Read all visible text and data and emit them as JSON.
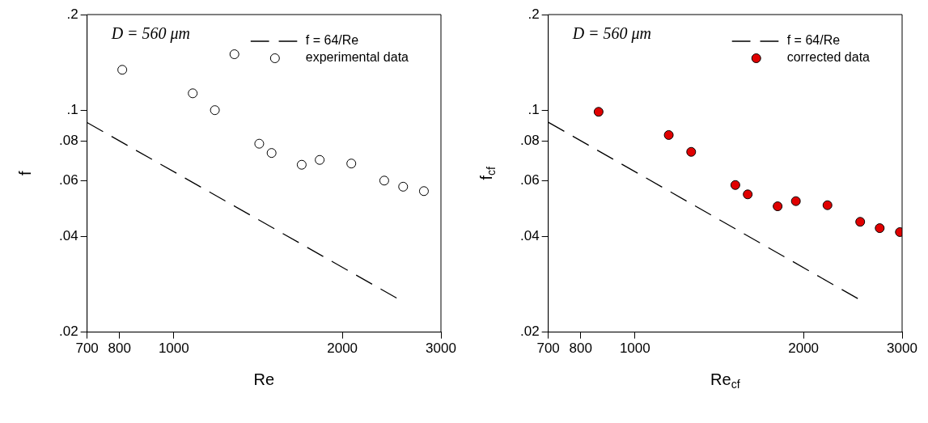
{
  "chart_data": [
    {
      "type": "scatter",
      "xlabel": "Re",
      "ylabel": "f",
      "annotations": [
        "D = 560 μm"
      ],
      "log": "xy",
      "grid": false,
      "legend": "top right",
      "xlim": [
        700,
        3000
      ],
      "xticks": [
        700,
        800,
        1000,
        2000,
        3000
      ],
      "ylim": [
        0.02,
        0.2
      ],
      "yticks": [
        {
          "value": 0.02,
          "label": ".02"
        },
        {
          "value": 0.04,
          "label": ".04"
        },
        {
          "value": 0.06,
          "label": ".06"
        },
        {
          "value": 0.08,
          "label": ".08"
        },
        {
          "value": 0.1,
          "label": ".1"
        },
        {
          "value": 0.2,
          "label": ".2"
        }
      ],
      "series": [
        {
          "name": "f = 64/Re",
          "type": "line",
          "color": "#000000",
          "marker": "none",
          "line_style": "dashed",
          "x": [
            700,
            2500
          ],
          "values": [
            0.0914,
            0.0256
          ]
        },
        {
          "name": "experimental data",
          "type": "scatter",
          "color": "#ffffff",
          "marker": "circle",
          "x": [
            809,
            1081,
            1184,
            1283,
            1421,
            1495,
            1692,
            1822,
            2075,
            2376,
            2568,
            2797
          ],
          "values": [
            0.134,
            0.113,
            0.1,
            0.15,
            0.0784,
            0.0733,
            0.0673,
            0.0697,
            0.0679,
            0.06,
            0.0574,
            0.0556
          ]
        }
      ]
    },
    {
      "type": "scatter",
      "xlabel": "Re$_{cf}$",
      "ylabel": "f$_{cf}$",
      "annotations": [
        "D = 560 μm"
      ],
      "log": "xy",
      "grid": false,
      "legend": "top right",
      "xlim": [
        700,
        3000
      ],
      "xticks": [
        700,
        800,
        1000,
        2000,
        3000
      ],
      "ylim": [
        0.02,
        0.2
      ],
      "yticks": [
        {
          "value": 0.02,
          "label": ".02"
        },
        {
          "value": 0.04,
          "label": ".04"
        },
        {
          "value": 0.06,
          "label": ".06"
        },
        {
          "value": 0.08,
          "label": ".08"
        },
        {
          "value": 0.1,
          "label": ".1"
        },
        {
          "value": 0.2,
          "label": ".2"
        }
      ],
      "series": [
        {
          "name": "f = 64/Re",
          "type": "line",
          "color": "#000000",
          "marker": "none",
          "line_style": "dashed",
          "x": [
            700,
            2500
          ],
          "values": [
            0.0916,
            0.0255
          ]
        },
        {
          "name": "corrected data",
          "type": "scatter",
          "color": "#e00000",
          "marker": "circle",
          "x": [
            861,
            1149,
            1260,
            1511,
            1590,
            1798,
            1938,
            2207,
            2525,
            2736,
            2973
          ],
          "values": [
            0.0988,
            0.0835,
            0.0739,
            0.0581,
            0.0543,
            0.0498,
            0.0517,
            0.0502,
            0.0445,
            0.0425,
            0.0413
          ]
        }
      ]
    }
  ]
}
